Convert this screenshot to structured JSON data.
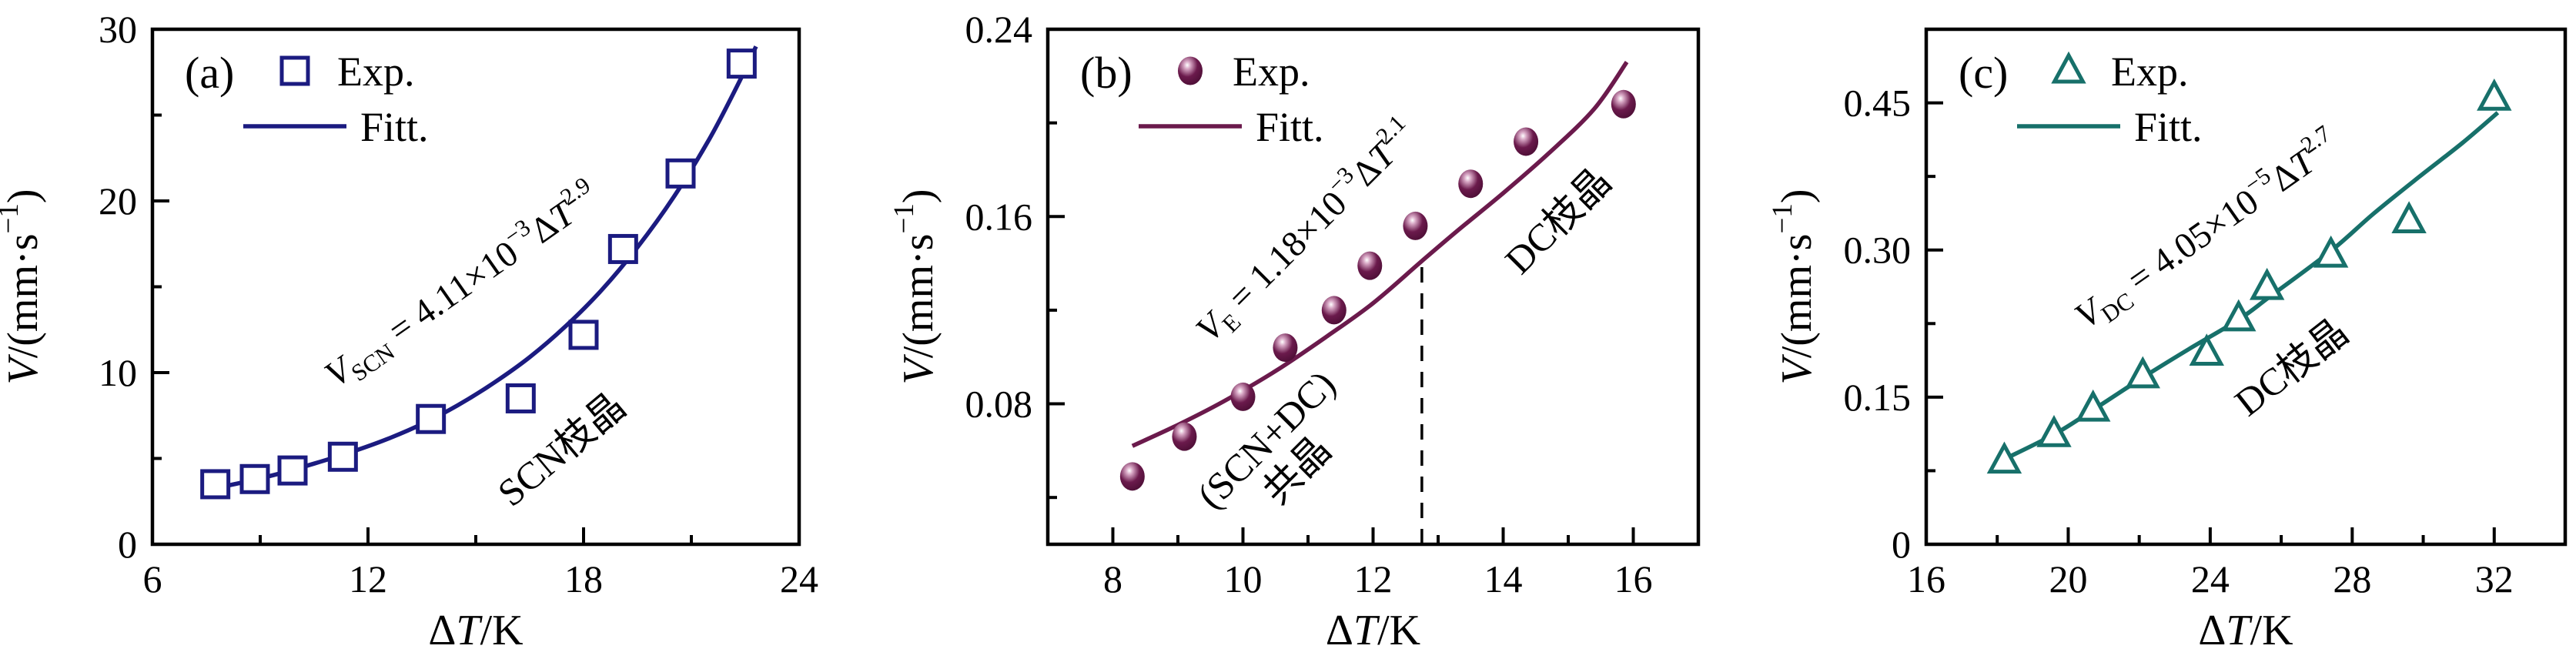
{
  "figure": {
    "background": "#ffffff",
    "text_color": "#000000",
    "axis_color": "#000000"
  },
  "chart_data": [
    {
      "type": "scatter",
      "panel_label": "(a)",
      "series_color": "#1b1b80",
      "marker": "square-open",
      "legend": {
        "exp_label": "Exp.",
        "fit_label": "Fitt."
      },
      "xlabel_segments": [
        {
          "t": "Δ"
        },
        {
          "t": "T",
          "i": 1
        },
        {
          "t": "/K"
        }
      ],
      "ylabel_segments": [
        {
          "t": "V",
          "i": 1
        },
        {
          "t": "/(mm·s"
        },
        {
          "t": "−1",
          "sup": 1
        },
        {
          "t": ")"
        }
      ],
      "xlabel_plain": "ΔT/K",
      "ylabel_plain": "V/(mm·s−1)",
      "xlim": [
        6,
        24
      ],
      "ylim": [
        0,
        30
      ],
      "xticks_major": [
        {
          "v": 6,
          "label": "6"
        },
        {
          "v": 12,
          "label": "12"
        },
        {
          "v": 18,
          "label": "18"
        },
        {
          "v": 24,
          "label": "24"
        }
      ],
      "xticks_minor": [
        9,
        15,
        21
      ],
      "yticks_major": [
        {
          "v": 0,
          "label": "0"
        },
        {
          "v": 10,
          "label": "10"
        },
        {
          "v": 20,
          "label": "20"
        },
        {
          "v": 30,
          "label": "30"
        }
      ],
      "yticks_minor": [
        5,
        15,
        25
      ],
      "points": [
        [
          7.75,
          3.5
        ],
        [
          8.85,
          3.8
        ],
        [
          9.9,
          4.3
        ],
        [
          11.3,
          5.1
        ],
        [
          13.75,
          7.3
        ],
        [
          16.25,
          8.5
        ],
        [
          18.0,
          12.2
        ],
        [
          19.1,
          17.2
        ],
        [
          20.7,
          21.6
        ],
        [
          22.4,
          28.0
        ]
      ],
      "fit_curve": [
        [
          7.6,
          3.2
        ],
        [
          8.5,
          3.6
        ],
        [
          9.5,
          4.1
        ],
        [
          10.5,
          4.7
        ],
        [
          11.5,
          5.35
        ],
        [
          12.5,
          6.1
        ],
        [
          13.5,
          7.0
        ],
        [
          14.5,
          8.1
        ],
        [
          15.5,
          9.4
        ],
        [
          16.5,
          10.9
        ],
        [
          17.5,
          12.7
        ],
        [
          18.5,
          14.8
        ],
        [
          19.5,
          17.3
        ],
        [
          20.5,
          20.2
        ],
        [
          21.5,
          23.6
        ],
        [
          22.3,
          26.8
        ],
        [
          22.8,
          29.0
        ]
      ],
      "equation": {
        "plain": "V_SCN = 4.11×10^−3 ΔT^2.9",
        "segments": [
          {
            "t": "V",
            "i": 1
          },
          {
            "t": "SCN",
            "sub": 1
          },
          {
            "t": " = 4.11×10"
          },
          {
            "t": "−3",
            "sup": 1
          },
          {
            "t": "Δ"
          },
          {
            "t": "T",
            "i": 1
          },
          {
            "t": "2.9",
            "sup": 1
          }
        ],
        "x": 14.8,
        "y": 14.5,
        "angle": -35
      },
      "annotations": [
        {
          "lines": [
            "SCN枝晶"
          ],
          "x": 17.4,
          "y": 5.5,
          "angle": -40
        }
      ]
    },
    {
      "type": "scatter",
      "panel_label": "(b)",
      "series_color": "#6b1a4c",
      "marker": "sphere",
      "sphere_gradient": {
        "highlight": "#ffffff",
        "mid": "#d7a6c4",
        "base": "#6b1a4c",
        "dark": "#4c0e35"
      },
      "legend": {
        "exp_label": "Exp.",
        "fit_label": "Fitt."
      },
      "xlabel_segments": [
        {
          "t": "Δ"
        },
        {
          "t": "T",
          "i": 1
        },
        {
          "t": "/K"
        }
      ],
      "ylabel_segments": [
        {
          "t": "V",
          "i": 1
        },
        {
          "t": "/(mm·s"
        },
        {
          "t": "−1",
          "sup": 1
        },
        {
          "t": ")"
        }
      ],
      "xlabel_plain": "ΔT/K",
      "ylabel_plain": "V/(mm·s−1)",
      "xlim": [
        7,
        17
      ],
      "ylim": [
        0.02,
        0.24
      ],
      "xticks_major": [
        {
          "v": 8,
          "label": "8"
        },
        {
          "v": 10,
          "label": "10"
        },
        {
          "v": 12,
          "label": "12"
        },
        {
          "v": 14,
          "label": "14"
        },
        {
          "v": 16,
          "label": "16"
        }
      ],
      "xticks_minor": [
        9,
        11,
        13,
        15
      ],
      "yticks_major": [
        {
          "v": 0.08,
          "label": "0.08"
        },
        {
          "v": 0.16,
          "label": "0.16"
        },
        {
          "v": 0.24,
          "label": "0.24"
        }
      ],
      "yticks_minor": [
        0.04,
        0.12,
        0.2
      ],
      "points": [
        [
          8.3,
          0.049
        ],
        [
          9.1,
          0.066
        ],
        [
          10.0,
          0.083
        ],
        [
          10.65,
          0.104
        ],
        [
          11.4,
          0.12
        ],
        [
          11.95,
          0.139
        ],
        [
          12.65,
          0.156
        ],
        [
          13.5,
          0.174
        ],
        [
          14.35,
          0.192
        ],
        [
          15.85,
          0.208
        ]
      ],
      "fit_curve": [
        [
          8.3,
          0.062
        ],
        [
          9.0,
          0.071
        ],
        [
          9.7,
          0.081
        ],
        [
          10.5,
          0.094
        ],
        [
          11.3,
          0.109
        ],
        [
          12.0,
          0.123
        ],
        [
          12.75,
          0.141
        ],
        [
          13.3,
          0.154
        ],
        [
          14.0,
          0.17
        ],
        [
          14.7,
          0.187
        ],
        [
          15.4,
          0.206
        ],
        [
          15.9,
          0.226
        ]
      ],
      "dashed_line": {
        "x": 12.75,
        "y0": 0.02,
        "y1": 0.141
      },
      "equation": {
        "plain": "V_E = 1.18×10^−3 ΔT^2.1",
        "segments": [
          {
            "t": "V",
            "i": 1
          },
          {
            "t": "E",
            "sub": 1
          },
          {
            "t": " = 1.18×10"
          },
          {
            "t": "−3",
            "sup": 1
          },
          {
            "t": "Δ"
          },
          {
            "t": "T",
            "i": 1
          },
          {
            "t": "2.1",
            "sup": 1
          }
        ],
        "x": 11.1,
        "y": 0.15,
        "angle": -45
      },
      "annotations": [
        {
          "lines": [
            "(SCN+DC)",
            "共晶"
          ],
          "x": 10.6,
          "y": 0.058,
          "angle": -45
        },
        {
          "lines": [
            "DC枝晶"
          ],
          "x": 14.85,
          "y": 0.158,
          "angle": -45
        }
      ]
    },
    {
      "type": "scatter",
      "panel_label": "(c)",
      "series_color": "#17706a",
      "marker": "triangle-open",
      "legend": {
        "exp_label": "Exp.",
        "fit_label": "Fitt."
      },
      "xlabel_segments": [
        {
          "t": "Δ"
        },
        {
          "t": "T",
          "i": 1
        },
        {
          "t": "/K"
        }
      ],
      "ylabel_segments": [
        {
          "t": "V",
          "i": 1
        },
        {
          "t": "/(mm·s"
        },
        {
          "t": "−1",
          "sup": 1
        },
        {
          "t": ")"
        }
      ],
      "xlabel_plain": "ΔT/K",
      "ylabel_plain": "V/(mm·s−1)",
      "xlim": [
        16,
        34
      ],
      "ylim": [
        0,
        0.525
      ],
      "xticks_major": [
        {
          "v": 16,
          "label": "16"
        },
        {
          "v": 20,
          "label": "20"
        },
        {
          "v": 24,
          "label": "24"
        },
        {
          "v": 28,
          "label": "28"
        },
        {
          "v": 32,
          "label": "32"
        }
      ],
      "xticks_minor": [
        18,
        22,
        26,
        30
      ],
      "yticks_major": [
        {
          "v": 0,
          "label": "0"
        },
        {
          "v": 0.15,
          "label": "0.15"
        },
        {
          "v": 0.3,
          "label": "0.30"
        },
        {
          "v": 0.45,
          "label": "0.45"
        }
      ],
      "yticks_minor": [
        0.075,
        0.225,
        0.375
      ],
      "points": [
        [
          18.2,
          0.085
        ],
        [
          19.6,
          0.112
        ],
        [
          20.7,
          0.138
        ],
        [
          22.1,
          0.172
        ],
        [
          23.9,
          0.195
        ],
        [
          24.8,
          0.23
        ],
        [
          25.6,
          0.262
        ],
        [
          27.4,
          0.295
        ],
        [
          29.6,
          0.33
        ],
        [
          32.0,
          0.455
        ]
      ],
      "fit_curve": [
        [
          18.1,
          0.085
        ],
        [
          19.6,
          0.112
        ],
        [
          20.7,
          0.137
        ],
        [
          22.1,
          0.17
        ],
        [
          23.4,
          0.199
        ],
        [
          24.8,
          0.229
        ],
        [
          25.7,
          0.253
        ],
        [
          27.4,
          0.299
        ],
        [
          28.6,
          0.337
        ],
        [
          29.9,
          0.375
        ],
        [
          31.1,
          0.409
        ],
        [
          32.1,
          0.44
        ]
      ],
      "equation": {
        "plain": "V_DC = 4.05×10^−5 ΔT^2.7",
        "segments": [
          {
            "t": "V",
            "i": 1
          },
          {
            "t": "DC",
            "sub": 1
          },
          {
            "t": " = 4.05×10"
          },
          {
            "t": "−5",
            "sup": 1
          },
          {
            "t": "Δ"
          },
          {
            "t": "T",
            "i": 1
          },
          {
            "t": "2.7",
            "sup": 1
          }
        ],
        "x": 24.1,
        "y": 0.31,
        "angle": -35
      },
      "annotations": [
        {
          "lines": [
            "DC枝晶"
          ],
          "x": 26.3,
          "y": 0.18,
          "angle": -38
        }
      ]
    }
  ]
}
